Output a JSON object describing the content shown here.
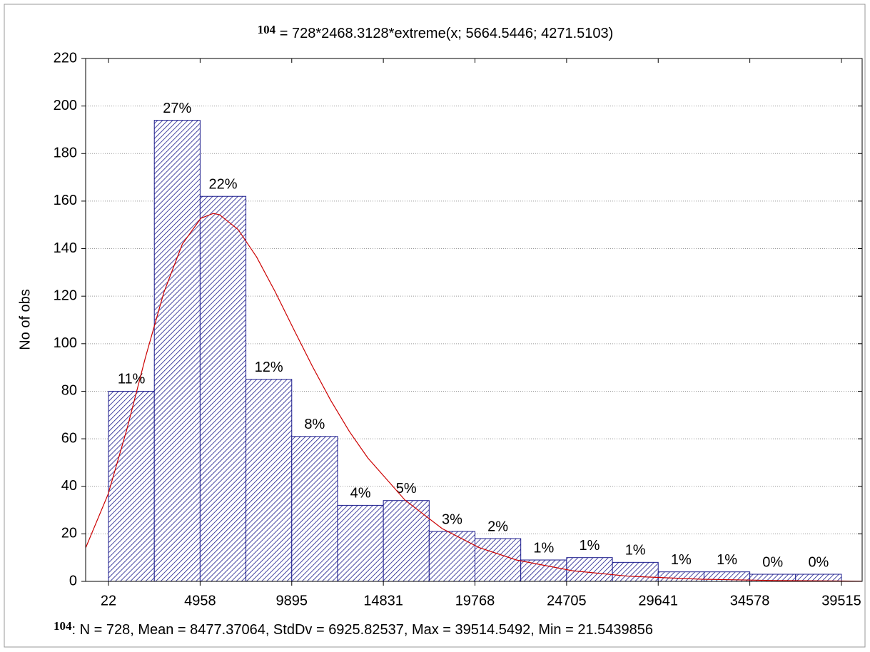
{
  "chart_data": {
    "type": "histogram",
    "title_variable": "104",
    "title": " = 728*2468.3128*extreme(x; 5664.5446; 4271.5103)",
    "y_label": "No of obs",
    "stats_variable": "104",
    "stats": ":   N = 728, Mean = 8477.37064, StdDv = 6925.82537, Max = 39514.5492, Min = 21.5439856",
    "bins": [
      22,
      2490,
      4958,
      7426,
      9895,
      12363,
      14831,
      17300,
      19768,
      22236,
      24705,
      27173,
      29641,
      32110,
      34578,
      37046,
      39515
    ],
    "counts": [
      80,
      194,
      162,
      85,
      61,
      32,
      34,
      21,
      18,
      9,
      10,
      8,
      4,
      4,
      3,
      3
    ],
    "value_labels": [
      "11%",
      "27%",
      "22%",
      "12%",
      "8%",
      "4%",
      "5%",
      "3%",
      "2%",
      "1%",
      "1%",
      "1%",
      "1%",
      "1%",
      "0%",
      "0%"
    ],
    "color": "#1a1a8c",
    "curve": {
      "color": "#cc0000",
      "x": [
        -1200,
        0,
        1000,
        2000,
        3000,
        4000,
        5000,
        5664,
        6000,
        7000,
        8000,
        9000,
        10000,
        11000,
        12000,
        13000,
        14000,
        16000,
        18000,
        20000,
        22000,
        25000,
        28000,
        32000,
        36000,
        39515,
        40600
      ],
      "values": [
        14.3,
        36.7,
        63.7,
        93.9,
        121.5,
        141.9,
        152.8,
        154.8,
        154.3,
        148.1,
        136.5,
        121.9,
        106.1,
        90.6,
        76.1,
        63.1,
        51.9,
        34.2,
        22.2,
        14.2,
        9.0,
        4.5,
        2.2,
        0.9,
        0.35,
        0.15,
        0.1
      ]
    },
    "xlim": [
      -1210,
      40630
    ],
    "ylim": [
      0,
      220
    ],
    "xticks": [
      22,
      4958,
      9895,
      14831,
      19768,
      24705,
      29641,
      34578,
      39515
    ],
    "yticks": [
      0,
      20,
      40,
      60,
      80,
      100,
      120,
      140,
      160,
      180,
      200,
      220
    ],
    "grid": true
  }
}
